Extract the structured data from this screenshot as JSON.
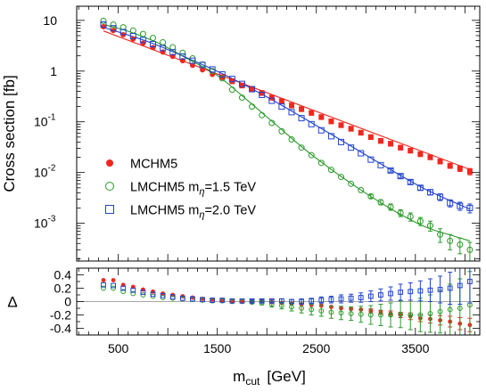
{
  "colors": {
    "mchm5": "#f0271e",
    "lmchm5_15": "#2a9a2a",
    "lmchm5_20": "#2244cc",
    "frame": "#000000"
  },
  "chart_data": [
    {
      "type": "scatter",
      "panel": "main",
      "ylabel": "Cross section  [fb]",
      "yscale": "log",
      "xlim": [
        80,
        4150
      ],
      "ylim": [
        0.00018,
        19
      ],
      "x_ticks": [
        500,
        1500,
        2500,
        3500
      ],
      "y_ticks": [
        {
          "value": 10,
          "base": "10",
          "exp": ""
        },
        {
          "value": 1,
          "base": "1",
          "exp": ""
        },
        {
          "value": 0.1,
          "base": "10",
          "exp": "-1"
        },
        {
          "value": 0.01,
          "base": "10",
          "exp": "-2"
        },
        {
          "value": 0.001,
          "base": "10",
          "exp": "-3"
        }
      ],
      "legend_position": "lower-left",
      "series": [
        {
          "name": "MCHM5",
          "legend_label": "MCHM5",
          "legend_sub": "",
          "legend_value": "",
          "marker": "filled-circle",
          "x": [
            350,
            450,
            550,
            650,
            750,
            850,
            950,
            1050,
            1150,
            1250,
            1350,
            1450,
            1550,
            1650,
            1750,
            1850,
            1950,
            2050,
            2150,
            2250,
            2350,
            2450,
            2550,
            2650,
            2750,
            2850,
            2950,
            3050,
            3150,
            3250,
            3350,
            3450,
            3550,
            3650,
            3750,
            3850,
            3950,
            4050
          ],
          "values": [
            7.5,
            6.3,
            5.2,
            4.3,
            3.55,
            2.9,
            2.38,
            1.95,
            1.6,
            1.3,
            1.06,
            0.86,
            0.76,
            0.63,
            0.52,
            0.44,
            0.37,
            0.3,
            0.255,
            0.21,
            0.178,
            0.15,
            0.124,
            0.102,
            0.086,
            0.073,
            0.061,
            0.05,
            0.042,
            0.037,
            0.031,
            0.027,
            0.023,
            0.02,
            0.0165,
            0.0136,
            0.012,
            0.0105
          ],
          "errors": [
            0,
            0,
            0,
            0,
            0,
            0,
            0,
            0,
            0,
            0,
            0,
            0,
            0,
            0,
            0,
            0,
            0,
            0,
            0,
            0,
            0,
            0,
            0,
            0,
            0,
            0,
            0,
            0,
            0,
            0,
            0,
            0,
            0,
            0.0015,
            0.0015,
            0.0015,
            0.0015,
            0.0015
          ],
          "theory_x": [
            350,
            4050
          ],
          "theory_y": [
            6.2,
            0.0115
          ]
        },
        {
          "name": "LMCHM5 m_eta=1.5 TeV",
          "legend_label": "LMCHM5  m",
          "legend_sub": "η",
          "legend_value": "=1.5 TeV",
          "marker": "open-circle",
          "x": [
            350,
            450,
            550,
            650,
            750,
            850,
            950,
            1050,
            1150,
            1250,
            1350,
            1450,
            1550,
            1650,
            1750,
            1850,
            1950,
            2050,
            2150,
            2250,
            2350,
            2450,
            2550,
            2650,
            2750,
            2850,
            2950,
            3050,
            3150,
            3250,
            3350,
            3450,
            3550,
            3650,
            3750,
            3850,
            3950,
            4050
          ],
          "values": [
            9.8,
            8.3,
            7.3,
            6.3,
            5.4,
            4.5,
            3.7,
            2.95,
            2.3,
            1.78,
            1.35,
            1.0,
            0.72,
            0.43,
            0.3,
            0.2,
            0.135,
            0.095,
            0.065,
            0.045,
            0.031,
            0.022,
            0.0155,
            0.0113,
            0.0082,
            0.006,
            0.0045,
            0.0034,
            0.0026,
            0.0021,
            0.0016,
            0.00135,
            0.0011,
            0.0009,
            0.0006,
            0.00045,
            0.00038,
            0.0003
          ],
          "errors": [
            0,
            0,
            0,
            0,
            0,
            0,
            0,
            0,
            0,
            0,
            0,
            0,
            0,
            0,
            0,
            0,
            0,
            0,
            0,
            0,
            0,
            0,
            0,
            0,
            0,
            0,
            0,
            0.0003,
            0.0003,
            0.0003,
            0.00025,
            0.00025,
            0.0002,
            0.0002,
            0.00018,
            0.00015,
            0.00013,
            0.00012
          ],
          "theory_x": [
            350,
            600,
            900,
            1200,
            1500,
            1800,
            2100,
            2400,
            2700,
            3000,
            3300,
            3600,
            3900,
            4050
          ],
          "theory_y": [
            8.3,
            6.1,
            3.6,
            1.75,
            0.82,
            0.27,
            0.085,
            0.027,
            0.0098,
            0.0039,
            0.0017,
            0.00085,
            0.00055,
            0.00045
          ]
        },
        {
          "name": "LMCHM5 m_eta=2.0 TeV",
          "legend_label": "LMCHM5  m",
          "legend_sub": "η",
          "legend_value": "=2.0 TeV",
          "marker": "open-square",
          "x": [
            350,
            450,
            550,
            650,
            750,
            850,
            950,
            1050,
            1150,
            1250,
            1350,
            1450,
            1550,
            1650,
            1750,
            1850,
            1950,
            2050,
            2150,
            2250,
            2350,
            2450,
            2550,
            2650,
            2750,
            2850,
            2950,
            3050,
            3150,
            3250,
            3350,
            3450,
            3550,
            3650,
            3750,
            3850,
            3950,
            4050
          ],
          "values": [
            8.3,
            7.0,
            5.9,
            4.9,
            4.1,
            3.4,
            2.85,
            2.35,
            1.95,
            1.6,
            1.32,
            1.08,
            0.86,
            0.7,
            0.56,
            0.44,
            0.34,
            0.26,
            0.2,
            0.155,
            0.118,
            0.09,
            0.068,
            0.052,
            0.04,
            0.031,
            0.024,
            0.018,
            0.014,
            0.011,
            0.0085,
            0.0065,
            0.005,
            0.0041,
            0.0033,
            0.0025,
            0.0022,
            0.002
          ],
          "errors": [
            0,
            0,
            0,
            0,
            0,
            0,
            0,
            0,
            0,
            0,
            0,
            0,
            0,
            0,
            0,
            0,
            0,
            0,
            0,
            0,
            0,
            0,
            0,
            0,
            0,
            0,
            0,
            0,
            0,
            0.0008,
            0.0007,
            0.0006,
            0.0005,
            0.0005,
            0.0005,
            0.0004,
            0.0004,
            0.0004
          ],
          "theory_x": [
            350,
            800,
            1200,
            1600,
            2000,
            2400,
            2800,
            3200,
            3600,
            4050
          ],
          "theory_y": [
            7.3,
            3.8,
            1.8,
            0.8,
            0.31,
            0.11,
            0.038,
            0.013,
            0.0047,
            0.0019
          ]
        }
      ]
    },
    {
      "type": "scatter",
      "panel": "ratio",
      "ylabel": "Δ",
      "xlabel": "m",
      "xlabel_sub": "cut",
      "xlabel_unit": "[GeV]",
      "xlim": [
        80,
        4150
      ],
      "ylim": [
        -0.5,
        0.5
      ],
      "x_ticks": [
        500,
        1500,
        2500,
        3500
      ],
      "y_ticks": [
        {
          "value": 0.4,
          "label": "0.4"
        },
        {
          "value": 0.2,
          "label": "0.2"
        },
        {
          "value": 0,
          "label": "0"
        },
        {
          "value": -0.2,
          "label": "-0.2"
        },
        {
          "value": -0.4,
          "label": "-0.4"
        }
      ],
      "series": [
        {
          "name": "MCHM5",
          "marker": "filled-circle",
          "x": [
            350,
            450,
            550,
            650,
            750,
            850,
            950,
            1050,
            1150,
            1250,
            1350,
            1450,
            1550,
            1650,
            1750,
            1850,
            1950,
            2050,
            2150,
            2250,
            2350,
            2450,
            2550,
            2650,
            2750,
            2850,
            2950,
            3050,
            3150,
            3250,
            3350,
            3450,
            3550,
            3650,
            3750,
            3850,
            3950,
            4050
          ],
          "values": [
            0.32,
            0.32,
            0.25,
            0.22,
            0.18,
            0.15,
            0.12,
            0.1,
            0.08,
            0.06,
            0.04,
            0.03,
            0.02,
            0.01,
            0.005,
            0.0,
            0.0,
            -0.01,
            -0.02,
            -0.03,
            -0.04,
            -0.05,
            -0.06,
            -0.08,
            -0.1,
            -0.11,
            -0.12,
            -0.14,
            -0.16,
            -0.18,
            -0.2,
            -0.22,
            -0.25,
            -0.26,
            -0.28,
            -0.3,
            -0.33,
            -0.35
          ],
          "errors": [
            0,
            0,
            0,
            0,
            0,
            0,
            0,
            0,
            0,
            0,
            0,
            0,
            0,
            0,
            0,
            0,
            0,
            0,
            0,
            0,
            0,
            0,
            0,
            0,
            0,
            0,
            0,
            0.03,
            0.03,
            0.04,
            0.04,
            0.05,
            0.05,
            0.06,
            0.07,
            0.08,
            0.09,
            0.1
          ]
        },
        {
          "name": "LMCHM5 m_eta=1.5 TeV",
          "marker": "open-circle",
          "x": [
            350,
            450,
            550,
            650,
            750,
            850,
            950,
            1050,
            1150,
            1250,
            1350,
            1450,
            1550,
            1650,
            1750,
            1850,
            1950,
            2050,
            2150,
            2250,
            2350,
            2450,
            2550,
            2650,
            2750,
            2850,
            2950,
            3050,
            3150,
            3250,
            3350,
            3450,
            3550,
            3650,
            3750,
            3850,
            3950,
            4050
          ],
          "values": [
            0.2,
            0.2,
            0.15,
            0.12,
            0.1,
            0.08,
            0.06,
            0.05,
            0.04,
            0.03,
            0.02,
            0.01,
            0.01,
            0.0,
            0.0,
            -0.01,
            -0.02,
            -0.04,
            -0.06,
            -0.08,
            -0.1,
            -0.12,
            -0.14,
            -0.16,
            -0.17,
            -0.18,
            -0.19,
            -0.2,
            -0.2,
            -0.2,
            -0.19,
            -0.2,
            -0.2,
            -0.18,
            -0.15,
            -0.12,
            -0.1,
            -0.05
          ],
          "errors": [
            0,
            0,
            0,
            0,
            0,
            0,
            0,
            0,
            0,
            0,
            0,
            0,
            0,
            0,
            0,
            0.02,
            0.03,
            0.04,
            0.05,
            0.06,
            0.07,
            0.08,
            0.08,
            0.09,
            0.1,
            0.1,
            0.12,
            0.14,
            0.16,
            0.18,
            0.2,
            0.22,
            0.25,
            0.28,
            0.32,
            0.38,
            0.44,
            0.5
          ]
        },
        {
          "name": "LMCHM5 m_eta=2.0 TeV",
          "marker": "open-square",
          "x": [
            350,
            450,
            550,
            650,
            750,
            850,
            950,
            1050,
            1150,
            1250,
            1350,
            1450,
            1550,
            1650,
            1750,
            1850,
            1950,
            2050,
            2150,
            2250,
            2350,
            2450,
            2550,
            2650,
            2750,
            2850,
            2950,
            3050,
            3150,
            3250,
            3350,
            3450,
            3550,
            3650,
            3750,
            3850,
            3950,
            4050
          ],
          "values": [
            0.25,
            0.24,
            0.2,
            0.17,
            0.14,
            0.11,
            0.09,
            0.07,
            0.05,
            0.04,
            0.03,
            0.02,
            0.02,
            0.01,
            0.01,
            0.01,
            0.01,
            0.01,
            0.01,
            0.0,
            0.0,
            0.01,
            0.02,
            0.03,
            0.04,
            0.05,
            0.06,
            0.08,
            0.1,
            0.12,
            0.14,
            0.15,
            0.16,
            0.17,
            0.18,
            0.2,
            0.24,
            0.3
          ],
          "errors": [
            0,
            0,
            0,
            0,
            0,
            0,
            0,
            0,
            0,
            0,
            0,
            0,
            0,
            0,
            0,
            0.02,
            0.02,
            0.02,
            0.03,
            0.03,
            0.04,
            0.04,
            0.05,
            0.05,
            0.06,
            0.06,
            0.07,
            0.08,
            0.09,
            0.1,
            0.12,
            0.13,
            0.15,
            0.17,
            0.2,
            0.24,
            0.28,
            0.32
          ]
        }
      ]
    }
  ]
}
